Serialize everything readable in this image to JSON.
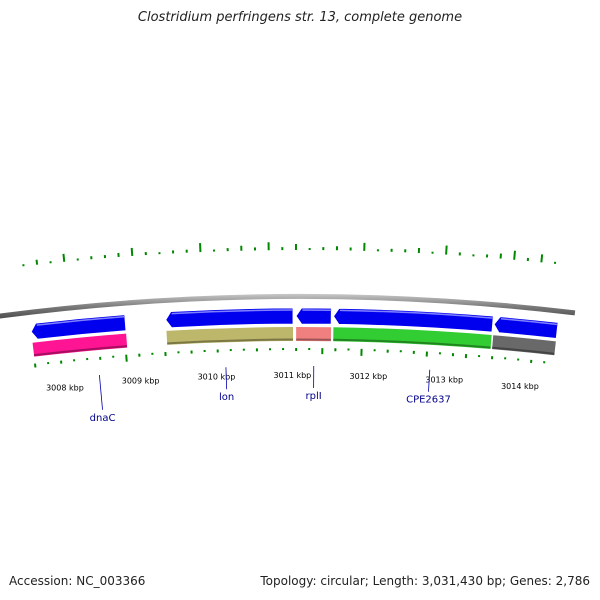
{
  "title": "Clostridium perfringens str. 13, complete genome",
  "footer": {
    "accession": "Accession: NC_003366",
    "summary": "Topology: circular; Length: 3,031,430 bp; Genes: 2,786"
  },
  "ticks": [
    {
      "kbp": 3008,
      "label": "3008 kbp"
    },
    {
      "kbp": 3009,
      "label": "3009 kbp"
    },
    {
      "kbp": 3010,
      "label": "3010 kbp"
    },
    {
      "kbp": 3011,
      "label": "3011 kbp"
    },
    {
      "kbp": 3012,
      "label": "3012 kbp"
    },
    {
      "kbp": 3013,
      "label": "3013 kbp"
    },
    {
      "kbp": 3014,
      "label": "3014 kbp"
    }
  ],
  "cds_features": [
    {
      "start": 3007.65,
      "end": 3008.86,
      "strand": "reverse"
    },
    {
      "start": 3009.38,
      "end": 3011.01,
      "strand": "reverse"
    },
    {
      "start": 3011.05,
      "end": 3011.5,
      "strand": "reverse"
    },
    {
      "start": 3011.53,
      "end": 3013.57,
      "strand": "reverse"
    },
    {
      "start": 3013.59,
      "end": 3014.4,
      "strand": "reverse"
    }
  ],
  "genes": [
    {
      "name": "dnaC",
      "start": 3007.65,
      "end": 3008.86,
      "color": "#ff1493",
      "label_kbp": 3008.47,
      "label_depth": 35
    },
    {
      "name": "lon",
      "start": 3009.38,
      "end": 3011.01,
      "color": "#bdb76b",
      "label_kbp": 3010.13,
      "label_depth": 22
    },
    {
      "name": "rplI",
      "start": 3011.05,
      "end": 3011.5,
      "color": "#f08080",
      "label_kbp": 3011.28,
      "label_depth": 22
    },
    {
      "name": "CPE2637",
      "start": 3011.53,
      "end": 3013.57,
      "color": "#32cd32",
      "label_kbp": 3012.8,
      "label_depth": 22
    },
    {
      "name": "",
      "start": 3013.59,
      "end": 3014.4,
      "color": "#696969",
      "label_kbp": null,
      "label_depth": 0
    }
  ],
  "gc_skew": [
    {
      "kbp": 3007.65,
      "value": 2
    },
    {
      "kbp": 3007.82,
      "value": 5
    },
    {
      "kbp": 3007.99,
      "value": 2
    },
    {
      "kbp": 3008.16,
      "value": 8
    },
    {
      "kbp": 3008.33,
      "value": 2
    },
    {
      "kbp": 3008.5,
      "value": 3
    },
    {
      "kbp": 3008.67,
      "value": 3
    },
    {
      "kbp": 3008.84,
      "value": 4
    },
    {
      "kbp": 3009.01,
      "value": 8
    },
    {
      "kbp": 3009.18,
      "value": 3
    },
    {
      "kbp": 3009.35,
      "value": 2
    },
    {
      "kbp": 3009.52,
      "value": 3
    },
    {
      "kbp": 3009.69,
      "value": 3
    },
    {
      "kbp": 3009.86,
      "value": 9
    },
    {
      "kbp": 3010.03,
      "value": 2
    },
    {
      "kbp": 3010.2,
      "value": 3
    },
    {
      "kbp": 3010.37,
      "value": 5
    },
    {
      "kbp": 3010.54,
      "value": 3
    },
    {
      "kbp": 3010.71,
      "value": 8
    },
    {
      "kbp": 3010.88,
      "value": 3
    },
    {
      "kbp": 3011.05,
      "value": 6
    },
    {
      "kbp": 3011.22,
      "value": 2
    },
    {
      "kbp": 3011.39,
      "value": 3
    },
    {
      "kbp": 3011.56,
      "value": 4
    },
    {
      "kbp": 3011.73,
      "value": 3
    },
    {
      "kbp": 3011.9,
      "value": 8
    },
    {
      "kbp": 3012.07,
      "value": 2
    },
    {
      "kbp": 3012.24,
      "value": 3
    },
    {
      "kbp": 3012.41,
      "value": 3
    },
    {
      "kbp": 3012.58,
      "value": 5
    },
    {
      "kbp": 3012.75,
      "value": 2
    },
    {
      "kbp": 3012.92,
      "value": 9
    },
    {
      "kbp": 3013.09,
      "value": 3
    },
    {
      "kbp": 3013.26,
      "value": 2
    },
    {
      "kbp": 3013.43,
      "value": 3
    },
    {
      "kbp": 3013.6,
      "value": 5
    },
    {
      "kbp": 3013.77,
      "value": 9
    },
    {
      "kbp": 3013.94,
      "value": 3
    },
    {
      "kbp": 3014.11,
      "value": 8
    },
    {
      "kbp": 3014.28,
      "value": 2
    }
  ],
  "gc_content": [
    {
      "kbp": 3007.65,
      "value": 4
    },
    {
      "kbp": 3007.82,
      "value": 2
    },
    {
      "kbp": 3007.99,
      "value": 3
    },
    {
      "kbp": 3008.16,
      "value": 2
    },
    {
      "kbp": 3008.33,
      "value": 2
    },
    {
      "kbp": 3008.5,
      "value": 3
    },
    {
      "kbp": 3008.67,
      "value": 2
    },
    {
      "kbp": 3008.84,
      "value": 7
    },
    {
      "kbp": 3009.01,
      "value": 3
    },
    {
      "kbp": 3009.18,
      "value": 2
    },
    {
      "kbp": 3009.35,
      "value": 4
    },
    {
      "kbp": 3009.52,
      "value": 2
    },
    {
      "kbp": 3009.69,
      "value": 3
    },
    {
      "kbp": 3009.86,
      "value": 2
    },
    {
      "kbp": 3010.03,
      "value": 3
    },
    {
      "kbp": 3010.2,
      "value": 2
    },
    {
      "kbp": 3010.37,
      "value": 2
    },
    {
      "kbp": 3010.54,
      "value": 3
    },
    {
      "kbp": 3010.71,
      "value": 2
    },
    {
      "kbp": 3010.88,
      "value": 2
    },
    {
      "kbp": 3011.05,
      "value": 3
    },
    {
      "kbp": 3011.22,
      "value": 2
    },
    {
      "kbp": 3011.39,
      "value": 6
    },
    {
      "kbp": 3011.56,
      "value": 3
    },
    {
      "kbp": 3011.73,
      "value": 2
    },
    {
      "kbp": 3011.9,
      "value": 7
    },
    {
      "kbp": 3012.07,
      "value": 2
    },
    {
      "kbp": 3012.24,
      "value": 3
    },
    {
      "kbp": 3012.41,
      "value": 2
    },
    {
      "kbp": 3012.58,
      "value": 3
    },
    {
      "kbp": 3012.75,
      "value": 5
    },
    {
      "kbp": 3012.92,
      "value": 2
    },
    {
      "kbp": 3013.09,
      "value": 3
    },
    {
      "kbp": 3013.26,
      "value": 4
    },
    {
      "kbp": 3013.43,
      "value": 2
    },
    {
      "kbp": 3013.6,
      "value": 3
    },
    {
      "kbp": 3013.77,
      "value": 2
    },
    {
      "kbp": 3013.94,
      "value": 2
    },
    {
      "kbp": 3014.11,
      "value": 3
    },
    {
      "kbp": 3014.28,
      "value": 2
    }
  ],
  "colors": {
    "cds": "#0000ee",
    "backbone": "#808080",
    "gc_bars": "#008800",
    "label_line": "#0000aa",
    "label_text": "#00008b",
    "tick_label": "#000000"
  }
}
